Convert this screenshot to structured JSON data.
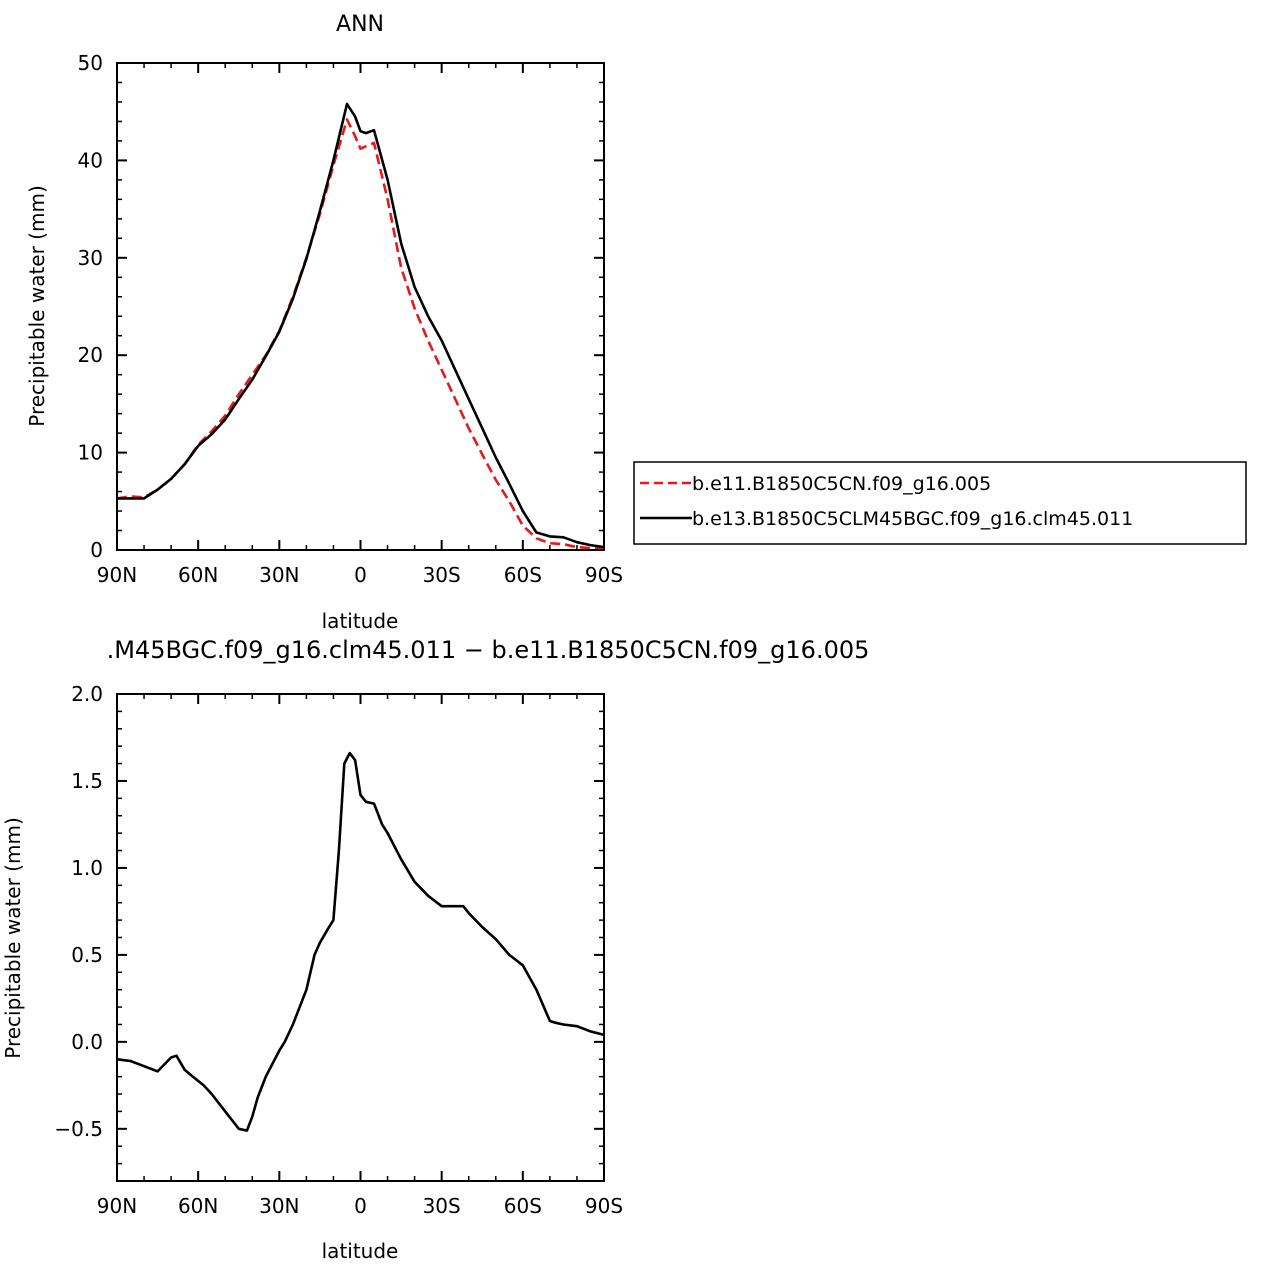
{
  "chart_data": [
    {
      "type": "line",
      "title": "ANN",
      "xlabel": "latitude",
      "ylabel": "Precipitable water (mm)",
      "xlim": [
        -90,
        90
      ],
      "ylim": [
        0,
        50
      ],
      "xticks": [
        {
          "value": -90,
          "label": "90N"
        },
        {
          "value": -60,
          "label": "60N"
        },
        {
          "value": -30,
          "label": "30N"
        },
        {
          "value": 0,
          "label": "0"
        },
        {
          "value": 30,
          "label": "30S"
        },
        {
          "value": 60,
          "label": "60S"
        },
        {
          "value": 90,
          "label": "90S"
        }
      ],
      "yticks": [
        {
          "value": 0,
          "label": "0"
        },
        {
          "value": 10,
          "label": "10"
        },
        {
          "value": 20,
          "label": "20"
        },
        {
          "value": 30,
          "label": "30"
        },
        {
          "value": 40,
          "label": "40"
        },
        {
          "value": 50,
          "label": "50"
        }
      ],
      "legend_position": "right",
      "series": [
        {
          "name": "b.e11.B1850C5CN.f09_g16.005",
          "color": "#e41a1c",
          "dash": true,
          "x": [
            -90,
            -85,
            -80,
            -75,
            -70,
            -65,
            -60,
            -55,
            -50,
            -45,
            -40,
            -35,
            -30,
            -25,
            -20,
            -15,
            -10,
            -5,
            -2,
            0,
            5,
            10,
            15,
            20,
            25,
            30,
            35,
            40,
            45,
            50,
            55,
            60,
            65,
            70,
            75,
            80,
            85,
            90
          ],
          "y": [
            5.3,
            5.5,
            5.4,
            6.2,
            7.3,
            8.8,
            10.8,
            12.2,
            13.8,
            16.0,
            18.0,
            20.0,
            22.5,
            26.0,
            30.0,
            34.5,
            39.5,
            44.2,
            42.5,
            41.2,
            41.8,
            36.0,
            29.0,
            24.8,
            21.5,
            18.5,
            15.5,
            12.5,
            9.8,
            7.2,
            5.0,
            2.5,
            1.2,
            0.7,
            0.6,
            0.3,
            0.2,
            0.1
          ]
        },
        {
          "name": "b.e13.B1850C5CLM45BGC.f09_g16.clm45.011",
          "color": "#000000",
          "dash": false,
          "x": [
            -90,
            -85,
            -80,
            -75,
            -70,
            -65,
            -60,
            -55,
            -50,
            -45,
            -40,
            -35,
            -30,
            -25,
            -20,
            -15,
            -10,
            -5,
            -2,
            0,
            2,
            5,
            10,
            15,
            20,
            25,
            30,
            35,
            40,
            45,
            50,
            55,
            60,
            65,
            70,
            75,
            80,
            85,
            90
          ],
          "y": [
            5.3,
            5.3,
            5.3,
            6.2,
            7.3,
            8.8,
            10.7,
            11.9,
            13.4,
            15.5,
            17.5,
            19.9,
            22.4,
            25.8,
            29.9,
            34.8,
            40.0,
            45.8,
            44.5,
            43.0,
            42.8,
            43.1,
            38.0,
            31.5,
            27.0,
            24.0,
            21.5,
            18.5,
            15.5,
            12.5,
            9.5,
            6.8,
            4.0,
            1.8,
            1.4,
            1.3,
            0.8,
            0.5,
            0.3
          ]
        }
      ]
    },
    {
      "type": "line",
      "title": ".M45BGC.f09_g16.clm45.011 − b.e11.B1850C5CN.f09_g16.005",
      "xlabel": "latitude",
      "ylabel": "Precipitable water (mm)",
      "xlim": [
        -90,
        90
      ],
      "ylim": [
        -0.8,
        2.0
      ],
      "xticks": [
        {
          "value": -90,
          "label": "90N"
        },
        {
          "value": -60,
          "label": "60N"
        },
        {
          "value": -30,
          "label": "30N"
        },
        {
          "value": 0,
          "label": "0"
        },
        {
          "value": 30,
          "label": "30S"
        },
        {
          "value": 60,
          "label": "60S"
        },
        {
          "value": 90,
          "label": "90S"
        }
      ],
      "yticks": [
        {
          "value": -0.5,
          "label": "−0.5"
        },
        {
          "value": 0.0,
          "label": "0.0"
        },
        {
          "value": 0.5,
          "label": "0.5"
        },
        {
          "value": 1.0,
          "label": "1.0"
        },
        {
          "value": 1.5,
          "label": "1.5"
        },
        {
          "value": 2.0,
          "label": "2.0"
        }
      ],
      "series": [
        {
          "color": "#000000",
          "dash": false,
          "x": [
            -90,
            -85,
            -80,
            -75,
            -70,
            -68,
            -65,
            -62,
            -58,
            -55,
            -50,
            -45,
            -42,
            -40,
            -38,
            -35,
            -30,
            -28,
            -25,
            -20,
            -17,
            -15,
            -12,
            -10,
            -8,
            -6,
            -4,
            -2,
            0,
            2,
            5,
            8,
            10,
            15,
            20,
            25,
            30,
            35,
            38,
            40,
            45,
            50,
            55,
            60,
            65,
            70,
            72,
            75,
            80,
            85,
            90
          ],
          "y": [
            -0.1,
            -0.11,
            -0.14,
            -0.17,
            -0.09,
            -0.08,
            -0.16,
            -0.2,
            -0.25,
            -0.3,
            -0.4,
            -0.5,
            -0.51,
            -0.43,
            -0.32,
            -0.2,
            -0.05,
            0.0,
            0.1,
            0.3,
            0.5,
            0.57,
            0.65,
            0.7,
            1.1,
            1.6,
            1.66,
            1.62,
            1.42,
            1.38,
            1.37,
            1.25,
            1.2,
            1.05,
            0.92,
            0.84,
            0.78,
            0.78,
            0.78,
            0.74,
            0.66,
            0.59,
            0.5,
            0.44,
            0.3,
            0.12,
            0.11,
            0.1,
            0.09,
            0.06,
            0.04
          ]
        }
      ]
    }
  ]
}
